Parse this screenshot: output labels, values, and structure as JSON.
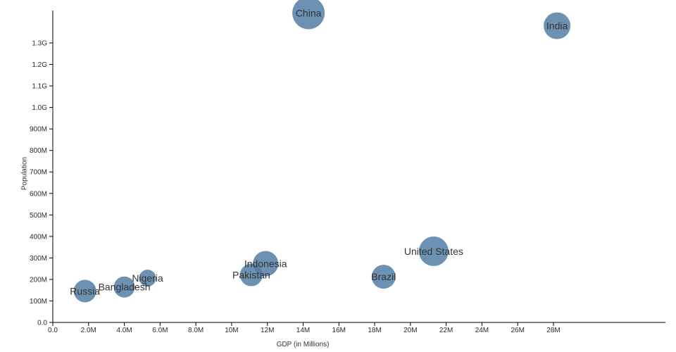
{
  "chart_data": {
    "type": "scatter",
    "subtype": "bubble",
    "title": "",
    "xlabel": "GDP (in Millions)",
    "ylabel": "Population",
    "grid": false,
    "legend": false,
    "xlim": [
      0,
      34
    ],
    "ylim": [
      0,
      1450
    ],
    "axis_color": "#000000",
    "tick_label_color": "#2b2b2b",
    "bubble_color": "#527ea6",
    "bubble_opacity": 0.85,
    "label_color": "#333333",
    "x_ticks": [
      {
        "value": 0,
        "label": "0.0"
      },
      {
        "value": 2,
        "label": "2.0M"
      },
      {
        "value": 4,
        "label": "4.0M"
      },
      {
        "value": 6,
        "label": "6.0M"
      },
      {
        "value": 8,
        "label": "8.0M"
      },
      {
        "value": 10,
        "label": "10M"
      },
      {
        "value": 12,
        "label": "12M"
      },
      {
        "value": 14,
        "label": "14M"
      },
      {
        "value": 16,
        "label": "16M"
      },
      {
        "value": 18,
        "label": "18M"
      },
      {
        "value": 20,
        "label": "20M"
      },
      {
        "value": 22,
        "label": "22M"
      },
      {
        "value": 24,
        "label": "24M"
      },
      {
        "value": 26,
        "label": "26M"
      },
      {
        "value": 28,
        "label": "28M"
      }
    ],
    "y_ticks": [
      {
        "value": 0,
        "label": "0.0"
      },
      {
        "value": 100,
        "label": "100M"
      },
      {
        "value": 200,
        "label": "200M"
      },
      {
        "value": 300,
        "label": "300M"
      },
      {
        "value": 400,
        "label": "400M"
      },
      {
        "value": 500,
        "label": "500M"
      },
      {
        "value": 600,
        "label": "600M"
      },
      {
        "value": 700,
        "label": "700M"
      },
      {
        "value": 800,
        "label": "800M"
      },
      {
        "value": 900,
        "label": "900M"
      },
      {
        "value": 1000,
        "label": "1.0G"
      },
      {
        "value": 1100,
        "label": "1.1G"
      },
      {
        "value": 1200,
        "label": "1.2G"
      },
      {
        "value": 1300,
        "label": "1.3G"
      }
    ],
    "points": [
      {
        "name": "China",
        "gdp_millions": 14.3,
        "population_millions": 1439.3,
        "radius": 23
      },
      {
        "name": "India",
        "gdp_millions": 28.2,
        "population_millions": 1380.0,
        "radius": 19
      },
      {
        "name": "United States",
        "gdp_millions": 21.3,
        "population_millions": 331.0,
        "radius": 21
      },
      {
        "name": "Brazil",
        "gdp_millions": 18.5,
        "population_millions": 212.6,
        "radius": 17
      },
      {
        "name": "Indonesia",
        "gdp_millions": 11.9,
        "population_millions": 273.5,
        "radius": 18
      },
      {
        "name": "Pakistan",
        "gdp_millions": 11.1,
        "population_millions": 220.9,
        "radius": 16
      },
      {
        "name": "Nigeria",
        "gdp_millions": 5.3,
        "population_millions": 206.1,
        "radius": 12
      },
      {
        "name": "Bangladesh",
        "gdp_millions": 4.0,
        "population_millions": 164.7,
        "radius": 15
      },
      {
        "name": "Russia",
        "gdp_millions": 1.8,
        "population_millions": 145.9,
        "radius": 16
      }
    ]
  }
}
